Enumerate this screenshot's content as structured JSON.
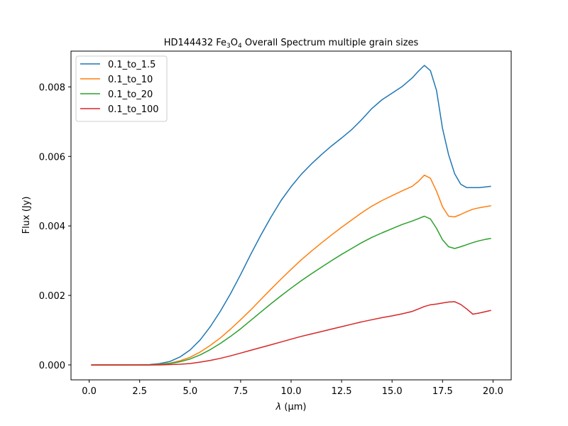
{
  "chart_data": {
    "type": "line",
    "title_parts": {
      "prefix": "HD144432 Fe",
      "sub1": "3",
      "mid": "O",
      "sub2": "4",
      "suffix": " Overall Spectrum multiple grain sizes"
    },
    "xlabel_symbol": "λ",
    "xlabel_unit": " (μm)",
    "ylabel": "Flux (Jy)",
    "xlim": [
      -0.9,
      20.9
    ],
    "ylim": [
      -0.00043,
      0.00903
    ],
    "x_ticks": [
      0.0,
      2.5,
      5.0,
      7.5,
      10.0,
      12.5,
      15.0,
      17.5,
      20.0
    ],
    "x_tick_labels": [
      "0.0",
      "2.5",
      "5.0",
      "7.5",
      "10.0",
      "12.5",
      "15.0",
      "17.5",
      "20.0"
    ],
    "y_ticks": [
      0.0,
      0.002,
      0.004,
      0.006,
      0.008
    ],
    "y_tick_labels": [
      "0.000",
      "0.002",
      "0.004",
      "0.006",
      "0.008"
    ],
    "grid": false,
    "legend_position": "upper-left",
    "x": [
      0.1,
      1.0,
      2.0,
      3.0,
      3.5,
      4.0,
      4.5,
      5.0,
      5.5,
      6.0,
      6.5,
      7.0,
      7.5,
      8.0,
      8.5,
      9.0,
      9.5,
      10.0,
      10.5,
      11.0,
      11.5,
      12.0,
      12.5,
      13.0,
      13.5,
      14.0,
      14.5,
      15.0,
      15.5,
      16.0,
      16.3,
      16.6,
      16.9,
      17.2,
      17.5,
      17.8,
      18.1,
      18.4,
      18.7,
      19.0,
      19.3,
      19.6,
      19.9
    ],
    "series": [
      {
        "name": "0.1_to_1.5",
        "color": "#1f77b4",
        "values": [
          0.0,
          0.0,
          0.0,
          1e-05,
          4e-05,
          0.0001,
          0.00023,
          0.00043,
          0.00072,
          0.0011,
          0.00155,
          0.00205,
          0.0026,
          0.00318,
          0.00373,
          0.00425,
          0.00473,
          0.00513,
          0.00548,
          0.00578,
          0.00605,
          0.0063,
          0.00653,
          0.00677,
          0.00706,
          0.00738,
          0.00763,
          0.00782,
          0.00801,
          0.00826,
          0.00845,
          0.00862,
          0.00847,
          0.0079,
          0.0068,
          0.00605,
          0.0055,
          0.0052,
          0.0051,
          0.0051,
          0.0051,
          0.00512,
          0.00514
        ]
      },
      {
        "name": "0.1_to_10",
        "color": "#ff7f0e",
        "values": [
          0.0,
          0.0,
          0.0,
          0.0,
          2e-05,
          5e-05,
          0.00012,
          0.00022,
          0.00037,
          0.00056,
          0.00078,
          0.00103,
          0.0013,
          0.00158,
          0.00188,
          0.00218,
          0.00247,
          0.00275,
          0.00302,
          0.00327,
          0.00351,
          0.00374,
          0.00396,
          0.00417,
          0.00438,
          0.00457,
          0.00473,
          0.00487,
          0.00501,
          0.00514,
          0.00528,
          0.00546,
          0.00537,
          0.005,
          0.00455,
          0.00428,
          0.00426,
          0.00433,
          0.00441,
          0.00448,
          0.00452,
          0.00455,
          0.00458
        ]
      },
      {
        "name": "0.1_to_20",
        "color": "#2ca02c",
        "values": [
          0.0,
          0.0,
          0.0,
          0.0,
          1e-05,
          4e-05,
          9e-05,
          0.00017,
          0.00029,
          0.00044,
          0.00062,
          0.00082,
          0.00104,
          0.00128,
          0.00152,
          0.00176,
          0.00199,
          0.00221,
          0.00242,
          0.00262,
          0.00281,
          0.003,
          0.00318,
          0.00335,
          0.00352,
          0.00367,
          0.0038,
          0.00392,
          0.00404,
          0.00414,
          0.00421,
          0.00428,
          0.0042,
          0.00393,
          0.0036,
          0.0034,
          0.00335,
          0.0034,
          0.00346,
          0.00352,
          0.00357,
          0.00361,
          0.00364
        ]
      },
      {
        "name": "0.1_to_100",
        "color": "#d62728",
        "values": [
          0.0,
          0.0,
          0.0,
          0.0,
          0.0,
          1e-05,
          2e-05,
          4e-05,
          8e-05,
          0.00013,
          0.00019,
          0.00026,
          0.00034,
          0.00042,
          0.0005,
          0.00058,
          0.00066,
          0.00074,
          0.00082,
          0.00089,
          0.00096,
          0.00103,
          0.0011,
          0.00117,
          0.00124,
          0.0013,
          0.00136,
          0.00141,
          0.00147,
          0.00154,
          0.00161,
          0.00168,
          0.00173,
          0.00175,
          0.00178,
          0.00181,
          0.00182,
          0.00174,
          0.00161,
          0.00146,
          0.00149,
          0.00153,
          0.00157
        ]
      }
    ]
  }
}
